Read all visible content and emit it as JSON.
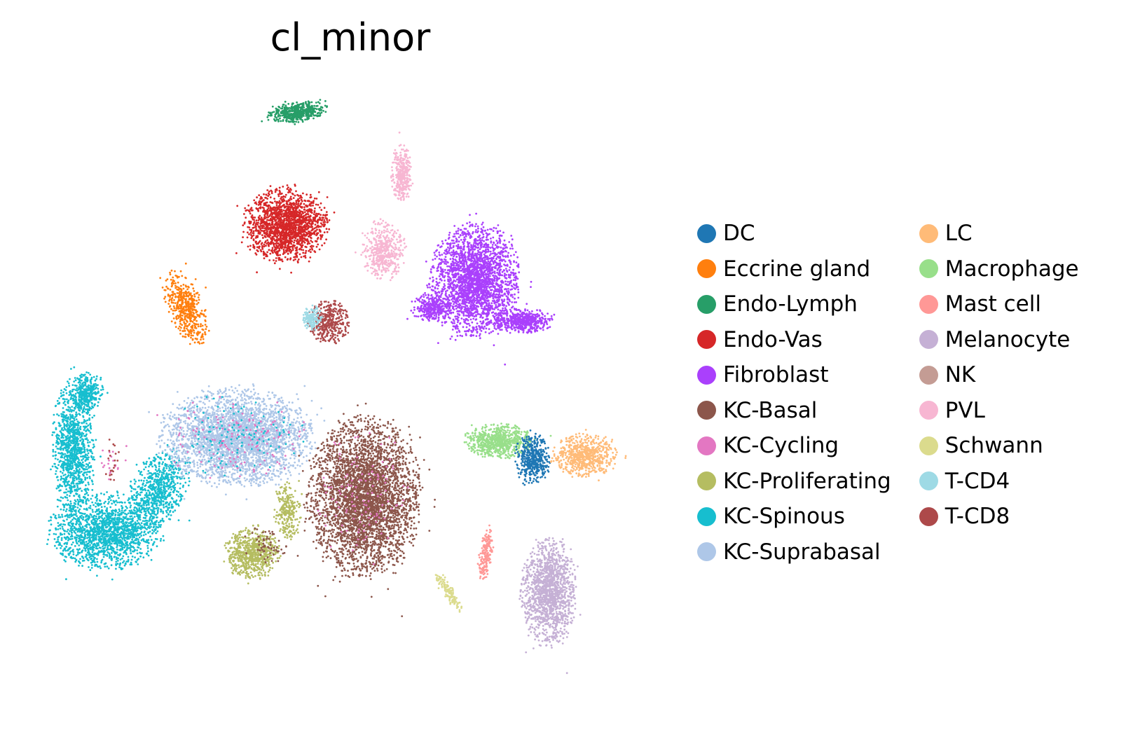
{
  "chart_data": {
    "type": "scatter",
    "title": "cl_minor",
    "xlabel": "",
    "ylabel": "",
    "axes_visible": false,
    "grid": false,
    "legend_position": "right",
    "legend_columns": 2,
    "series": [
      {
        "name": "DC",
        "color": "#1f77b4"
      },
      {
        "name": "Eccrine gland",
        "color": "#ff7f0e"
      },
      {
        "name": "Endo-Lymph",
        "color": "#279e68"
      },
      {
        "name": "Endo-Vas",
        "color": "#d62728"
      },
      {
        "name": "Fibroblast",
        "color": "#aa40fc"
      },
      {
        "name": "KC-Basal",
        "color": "#8c564b"
      },
      {
        "name": "KC-Cycling",
        "color": "#e377c2"
      },
      {
        "name": "KC-Proliferating",
        "color": "#b5bd61"
      },
      {
        "name": "KC-Spinous",
        "color": "#17becf"
      },
      {
        "name": "KC-Suprabasal",
        "color": "#aec7e8"
      },
      {
        "name": "LC",
        "color": "#ffbb78"
      },
      {
        "name": "Macrophage",
        "color": "#98df8a"
      },
      {
        "name": "Mast cell",
        "color": "#ff9896"
      },
      {
        "name": "Melanocyte",
        "color": "#c5b0d5"
      },
      {
        "name": "NK",
        "color": "#c49c94"
      },
      {
        "name": "PVL",
        "color": "#f7b6d2"
      },
      {
        "name": "Schwann",
        "color": "#dbdb8d"
      },
      {
        "name": "T-CD4",
        "color": "#9edae5"
      },
      {
        "name": "T-CD8",
        "color": "#ad494a"
      }
    ]
  }
}
